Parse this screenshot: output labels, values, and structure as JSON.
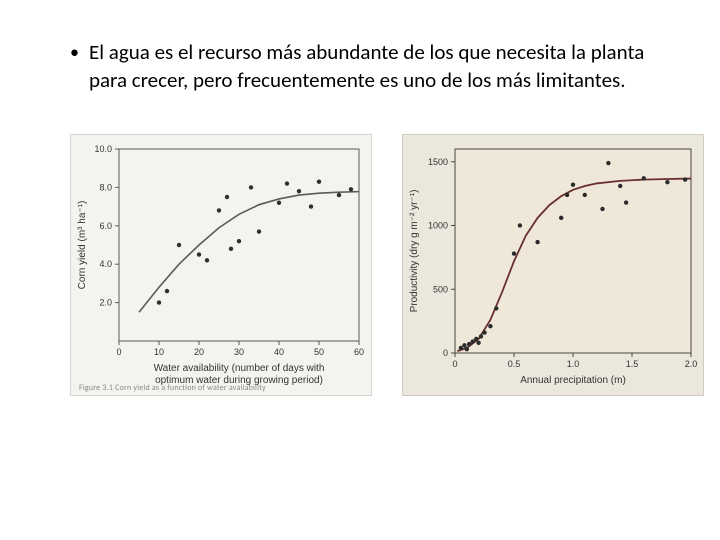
{
  "bullet": {
    "text": "El agua es el recurso más abundante de los que necesita la planta para crecer, pero frecuentemente es uno de los más limitantes."
  },
  "left_chart": {
    "type": "scatter-with-curve",
    "background_color": "#f5f3ef",
    "frame_color": "#5b5a56",
    "curve_color": "#5b5a56",
    "point_color": "#2f2f2f",
    "xlabel_line1": "Water availability (number of days with",
    "xlabel_line2": "optimum water during growing period)",
    "ylabel": "Corn yield (m³ ha⁻¹)",
    "xlim": [
      0,
      60
    ],
    "ylim": [
      0,
      10
    ],
    "xticks": [
      0,
      10,
      20,
      30,
      40,
      50,
      60
    ],
    "yticks": [
      2.0,
      4.0,
      6.0,
      8.0,
      10.0
    ],
    "ytick_labels": [
      "2.0",
      "4.0",
      "6.0",
      "8.0",
      "10.0"
    ],
    "points": [
      [
        10,
        2.0
      ],
      [
        12,
        2.6
      ],
      [
        15,
        5.0
      ],
      [
        20,
        4.5
      ],
      [
        22,
        4.2
      ],
      [
        25,
        6.8
      ],
      [
        27,
        7.5
      ],
      [
        28,
        4.8
      ],
      [
        30,
        5.2
      ],
      [
        33,
        8.0
      ],
      [
        35,
        5.7
      ],
      [
        40,
        7.2
      ],
      [
        42,
        8.2
      ],
      [
        45,
        7.8
      ],
      [
        48,
        7.0
      ],
      [
        50,
        8.3
      ],
      [
        55,
        7.6
      ],
      [
        58,
        7.9
      ]
    ],
    "curve": [
      [
        5,
        1.5
      ],
      [
        10,
        2.8
      ],
      [
        15,
        4.0
      ],
      [
        20,
        5.0
      ],
      [
        25,
        5.9
      ],
      [
        30,
        6.6
      ],
      [
        35,
        7.1
      ],
      [
        40,
        7.4
      ],
      [
        45,
        7.6
      ],
      [
        50,
        7.7
      ],
      [
        55,
        7.75
      ],
      [
        60,
        7.78
      ]
    ],
    "caption": "Figure 3.1   Corn yield as a function of water availability"
  },
  "right_chart": {
    "type": "scatter-with-curve",
    "background_color": "#ece7dd",
    "frame_color": "#4a4640",
    "curve_color": "#6a2f2f",
    "point_color": "#2b2b2b",
    "xlabel": "Annual precipitation (m)",
    "ylabel": "Productivity (dry g m⁻² yr⁻¹)",
    "xlim": [
      0,
      2.0
    ],
    "ylim": [
      0,
      1600
    ],
    "xticks": [
      0,
      0.5,
      1.0,
      1.5,
      2.0
    ],
    "yticks": [
      0,
      500,
      1000,
      1500
    ],
    "points": [
      [
        0.05,
        40
      ],
      [
        0.08,
        60
      ],
      [
        0.1,
        30
      ],
      [
        0.12,
        70
      ],
      [
        0.15,
        90
      ],
      [
        0.18,
        110
      ],
      [
        0.2,
        80
      ],
      [
        0.22,
        130
      ],
      [
        0.25,
        160
      ],
      [
        0.3,
        210
      ],
      [
        0.35,
        350
      ],
      [
        0.5,
        780
      ],
      [
        0.55,
        1000
      ],
      [
        0.7,
        870
      ],
      [
        0.9,
        1060
      ],
      [
        0.95,
        1240
      ],
      [
        1.0,
        1320
      ],
      [
        1.1,
        1240
      ],
      [
        1.25,
        1130
      ],
      [
        1.3,
        1490
      ],
      [
        1.4,
        1310
      ],
      [
        1.45,
        1180
      ],
      [
        1.6,
        1370
      ],
      [
        1.8,
        1340
      ],
      [
        1.95,
        1360
      ]
    ],
    "curve": [
      [
        0.02,
        15
      ],
      [
        0.1,
        40
      ],
      [
        0.2,
        110
      ],
      [
        0.3,
        260
      ],
      [
        0.4,
        480
      ],
      [
        0.5,
        720
      ],
      [
        0.6,
        920
      ],
      [
        0.7,
        1060
      ],
      [
        0.8,
        1160
      ],
      [
        0.9,
        1230
      ],
      [
        1.0,
        1280
      ],
      [
        1.1,
        1310
      ],
      [
        1.2,
        1330
      ],
      [
        1.4,
        1350
      ],
      [
        1.6,
        1360
      ],
      [
        1.8,
        1365
      ],
      [
        2.0,
        1368
      ]
    ]
  }
}
